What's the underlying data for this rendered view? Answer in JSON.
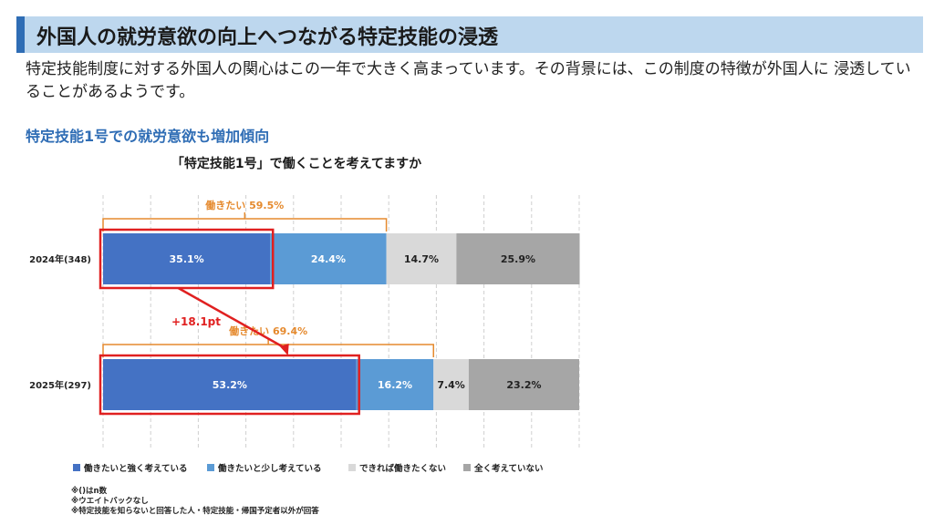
{
  "page": {
    "title": "外国人の就労意欲の向上へつながる特定技能の浸透",
    "intro": "特定技能制度に対する外国人の関心はこの一年で大きく高まっています。その背景には、この制度の特徴が外国人に 浸透していることがあるようです。",
    "subheading": "特定技能1号での就労意欲も増加傾向"
  },
  "chart_data": {
    "type": "bar",
    "orientation": "horizontal-stacked-100",
    "title": "「特定技能1号」で働くことを考えてますか",
    "categories": [
      "2024年(348)",
      "2025年(297)"
    ],
    "series": [
      {
        "name": "働きたいと強く考えている",
        "values": [
          35.1,
          53.2
        ],
        "labels": [
          "35.1%",
          "53.2%"
        ],
        "color": "#4472c4",
        "label_color": "#ffffff"
      },
      {
        "name": "働きたいと少し考えている",
        "values": [
          24.4,
          16.2
        ],
        "labels": [
          "24.4%",
          "16.2%"
        ],
        "color": "#5b9bd5",
        "label_color": "#ffffff"
      },
      {
        "name": "できれば働きたくない",
        "values": [
          14.7,
          7.4
        ],
        "labels": [
          "14.7%",
          "7.4%"
        ],
        "color": "#d9d9d9",
        "label_color": "#222222"
      },
      {
        "name": "全く考えていない",
        "values": [
          25.9,
          23.2
        ],
        "labels": [
          "25.9%",
          "23.2%"
        ],
        "color": "#a6a6a6",
        "label_color": "#222222"
      }
    ],
    "xlim": [
      0,
      100
    ],
    "grid": true,
    "legend": "bottom",
    "annotations": {
      "brackets": [
        {
          "category": 0,
          "value": 59.5,
          "text": "働きたい 59.5%"
        },
        {
          "category": 1,
          "value": 69.4,
          "text": "働きたい 69.4%"
        }
      ],
      "difference": {
        "text": "+18.1pt",
        "from": 0,
        "to": 1
      },
      "highlight_color": "#e02020",
      "bracket_color": "#e58a2e"
    },
    "notes": [
      "※()はn数",
      "※ウエイトバックなし",
      "※特定技能を知らないと回答した人・特定技能・帰国予定者以外が回答"
    ]
  }
}
